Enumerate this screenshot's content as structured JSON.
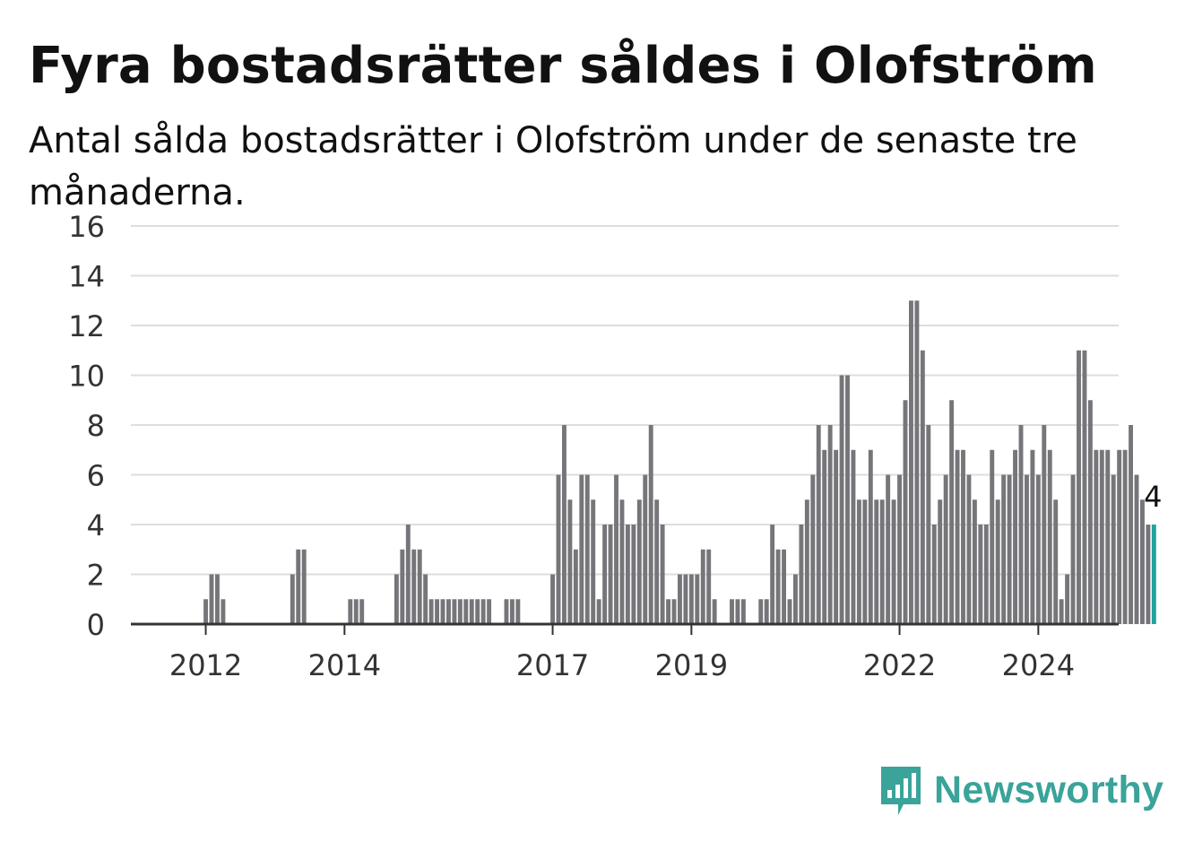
{
  "title": "Fyra bostadsrätter såldes i Olofström",
  "subtitle": "Antal sålda bostadsrätter i Olofström under de senaste tre månaderna.",
  "logo": {
    "icon": "newsworthy-logo-icon",
    "text": "Newsworthy"
  },
  "colors": {
    "bar": "#75757a",
    "highlight": "#22a39c",
    "grid": "#dddddd",
    "axis": "#333333",
    "logo": "#3aa39a"
  },
  "chart_data": {
    "type": "bar",
    "title": "Fyra bostadsrätter såldes i Olofström",
    "subtitle": "Antal sålda bostadsrätter i Olofström under de senaste tre månaderna.",
    "xlabel": "",
    "ylabel": "",
    "ylim": [
      0,
      16
    ],
    "y_ticks": [
      0,
      2,
      4,
      6,
      8,
      10,
      12,
      14,
      16
    ],
    "x_tick_labels": [
      {
        "label": "2012",
        "at": "2012-01"
      },
      {
        "label": "2014",
        "at": "2014-01"
      },
      {
        "label": "2017",
        "at": "2017-01"
      },
      {
        "label": "2019",
        "at": "2019-01"
      },
      {
        "label": "2022",
        "at": "2022-01"
      },
      {
        "label": "2024",
        "at": "2024-01"
      }
    ],
    "grid": true,
    "start": "2011-04",
    "frequency": "monthly",
    "values": [
      0,
      0,
      0,
      0,
      0,
      0,
      0,
      0,
      0,
      1,
      2,
      2,
      1,
      0,
      0,
      0,
      0,
      0,
      0,
      0,
      0,
      0,
      0,
      0,
      2,
      3,
      3,
      0,
      0,
      0,
      0,
      0,
      0,
      0,
      1,
      1,
      1,
      0,
      0,
      0,
      0,
      0,
      2,
      3,
      4,
      3,
      3,
      2,
      1,
      1,
      1,
      1,
      1,
      1,
      1,
      1,
      1,
      1,
      1,
      0,
      0,
      1,
      1,
      1,
      0,
      0,
      0,
      0,
      0,
      2,
      6,
      8,
      5,
      3,
      6,
      6,
      5,
      1,
      4,
      4,
      6,
      5,
      4,
      4,
      5,
      6,
      8,
      5,
      4,
      1,
      1,
      2,
      2,
      2,
      2,
      3,
      3,
      1,
      0,
      0,
      1,
      1,
      1,
      0,
      0,
      1,
      1,
      4,
      3,
      3,
      1,
      2,
      4,
      5,
      6,
      8,
      7,
      8,
      7,
      10,
      10,
      7,
      5,
      5,
      7,
      5,
      5,
      6,
      5,
      6,
      9,
      13,
      13,
      11,
      8,
      4,
      5,
      6,
      9,
      7,
      7,
      6,
      5,
      4,
      4,
      7,
      5,
      6,
      6,
      7,
      8,
      6,
      7,
      6,
      8,
      7,
      5,
      1,
      2,
      6,
      11,
      11,
      9,
      7,
      7,
      7,
      6,
      7,
      7,
      8,
      6,
      5,
      4,
      4
    ],
    "highlight_last_n": 1,
    "annotation": {
      "text": "4",
      "value": 4
    }
  }
}
